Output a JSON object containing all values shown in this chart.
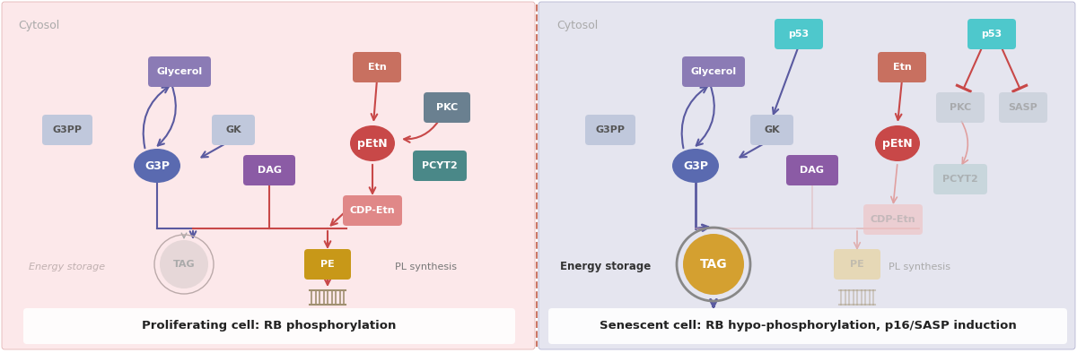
{
  "fig_width": 12.0,
  "fig_height": 3.94,
  "left_caption": "Proliferating cell: RB phosphorylation",
  "right_caption": "Senescent cell: RB hypo-phosphorylation, p16/SASP induction",
  "cytosol_label": "Cytosol",
  "bg_left_color": "#fce8ea",
  "bg_right_color": "#e5e5ef",
  "divider_color": "#cc6666"
}
